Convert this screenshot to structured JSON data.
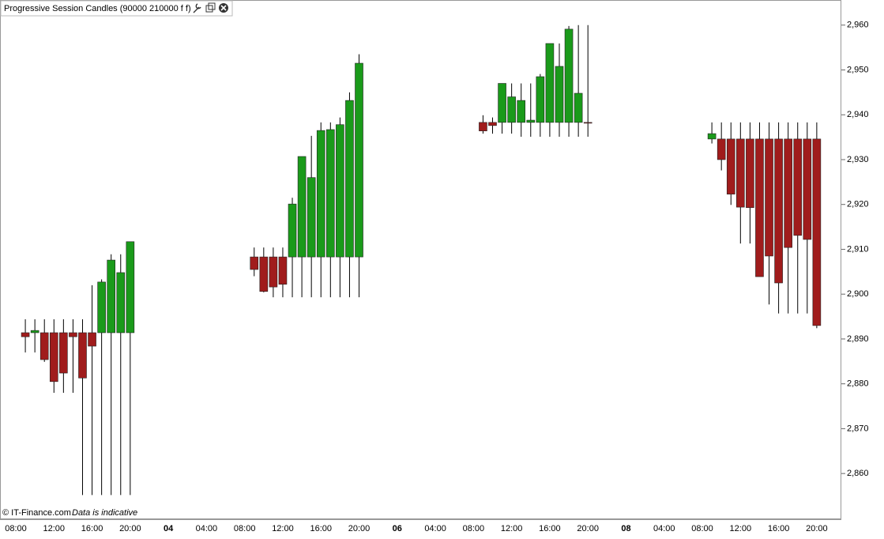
{
  "chart_data": {
    "type": "candlestick",
    "title": "Progressive Session Candles (90000 210000 f f)",
    "source": "© IT-Finance.com",
    "note": "Data is indicative",
    "up_color": "#1a9a1a",
    "down_color": "#a01c1c",
    "categories": [
      "08:00",
      null,
      null,
      null,
      "12:00",
      null,
      null,
      null,
      "16:00",
      null,
      null,
      null,
      "20:00",
      null,
      null,
      null,
      "04",
      null,
      null,
      null,
      "04:00",
      null,
      null,
      null,
      "08:00",
      null,
      null,
      null,
      "12:00",
      null,
      null,
      null,
      "16:00",
      null,
      null,
      null,
      "20:00",
      null,
      null,
      null,
      "06",
      null,
      null,
      null,
      "04:00",
      null,
      null,
      null,
      "08:00",
      null,
      null,
      null,
      "12:00",
      null,
      null,
      null,
      "16:00",
      null,
      null,
      null,
      "20:00",
      null,
      null,
      null,
      "08",
      null,
      null,
      null,
      "04:00",
      null,
      null,
      null,
      "08:00",
      null,
      null,
      null,
      "12:00",
      null,
      null,
      null,
      "16:00",
      null,
      null,
      null,
      "20:00"
    ],
    "open": [
      null,
      2891.4,
      2891.4,
      2891.4,
      2891.4,
      2891.4,
      2891.4,
      2891.4,
      2891.4,
      2891.4,
      2891.4,
      2891.4,
      2891.4,
      null,
      null,
      null,
      null,
      null,
      null,
      null,
      null,
      null,
      null,
      null,
      null,
      2908.3,
      2908.3,
      2908.3,
      2908.3,
      2908.3,
      2908.3,
      2908.3,
      2908.3,
      2908.3,
      2908.3,
      2908.3,
      2908.3,
      null,
      null,
      null,
      null,
      null,
      null,
      null,
      null,
      null,
      null,
      null,
      null,
      2938.3,
      2938.3,
      2938.3,
      2938.3,
      2938.3,
      2938.3,
      2938.3,
      2938.3,
      2938.3,
      2938.3,
      2938.3,
      2938.3,
      null,
      null,
      null,
      null,
      null,
      null,
      null,
      null,
      null,
      null,
      null,
      null,
      2934.6,
      2934.6,
      2934.6,
      2934.6,
      2934.6,
      2934.6,
      2934.6,
      2934.6,
      2934.6,
      2934.6,
      2934.6,
      2934.6
    ],
    "high": [
      null,
      2894.4,
      2894.4,
      2894.4,
      2894.4,
      2894.4,
      2894.4,
      2894.4,
      2902.0,
      2903.3,
      2908.9,
      2908.9,
      2911.7,
      null,
      null,
      null,
      null,
      null,
      null,
      null,
      null,
      null,
      null,
      null,
      null,
      2910.4,
      2910.4,
      2910.4,
      2910.4,
      2921.5,
      2930.7,
      2935.3,
      2938.3,
      2938.3,
      2939.4,
      2945.0,
      2953.5,
      null,
      null,
      null,
      null,
      null,
      null,
      null,
      null,
      null,
      null,
      null,
      null,
      2939.9,
      2939.4,
      2947.0,
      2947.0,
      2947.0,
      2947.0,
      2949.1,
      2955.9,
      2955.9,
      2959.8,
      2960.0,
      2960.0,
      null,
      null,
      null,
      null,
      null,
      null,
      null,
      null,
      null,
      null,
      null,
      null,
      2938.3,
      2938.3,
      2938.3,
      2938.3,
      2938.3,
      2938.3,
      2938.3,
      2938.3,
      2938.3,
      2938.3,
      2938.3,
      2938.3
    ],
    "low": [
      null,
      2887.0,
      2887.0,
      2884.9,
      2878.0,
      2878.0,
      2878.0,
      2855.2,
      2855.2,
      2855.2,
      2855.2,
      2855.2,
      2855.2,
      null,
      null,
      null,
      null,
      null,
      null,
      null,
      null,
      null,
      null,
      null,
      null,
      2904.0,
      2900.4,
      2899.3,
      2899.3,
      2899.3,
      2899.3,
      2899.3,
      2899.3,
      2899.3,
      2899.3,
      2899.3,
      2899.3,
      null,
      null,
      null,
      null,
      null,
      null,
      null,
      null,
      null,
      null,
      null,
      null,
      2935.8,
      2935.8,
      2935.8,
      2935.8,
      2935.1,
      2935.1,
      2935.1,
      2935.1,
      2935.1,
      2935.1,
      2935.1,
      2935.1,
      null,
      null,
      null,
      null,
      null,
      null,
      null,
      null,
      null,
      null,
      null,
      null,
      2933.6,
      2927.6,
      2919.9,
      2911.3,
      2911.3,
      2903.9,
      2897.7,
      2895.7,
      2895.7,
      2895.7,
      2895.7,
      2892.4
    ],
    "close": [
      null,
      2890.5,
      2891.9,
      2885.4,
      2880.5,
      2882.4,
      2890.5,
      2881.3,
      2888.4,
      2902.7,
      2907.6,
      2904.8,
      2911.7,
      null,
      null,
      null,
      null,
      null,
      null,
      null,
      null,
      null,
      null,
      null,
      null,
      2905.5,
      2900.6,
      2901.6,
      2902.2,
      2920.1,
      2930.7,
      2926.0,
      2936.5,
      2936.7,
      2937.8,
      2943.2,
      2951.5,
      null,
      null,
      null,
      null,
      null,
      null,
      null,
      null,
      null,
      null,
      null,
      null,
      2936.4,
      2937.6,
      2947.0,
      2944.0,
      2943.2,
      2938.8,
      2948.5,
      2955.9,
      2950.8,
      2959.1,
      2944.8,
      2938.2,
      null,
      null,
      null,
      null,
      null,
      null,
      null,
      null,
      null,
      null,
      null,
      null,
      2935.8,
      2930.0,
      2922.3,
      2919.4,
      2919.3,
      2903.9,
      2908.5,
      2902.5,
      2910.4,
      2913.1,
      2912.2,
      2893.0
    ],
    "ylim": [
      2849.8,
      2965.6
    ],
    "yticks": [
      {
        "value": 2860,
        "label": "2,860"
      },
      {
        "value": 2870,
        "label": "2,870"
      },
      {
        "value": 2880,
        "label": "2,880"
      },
      {
        "value": 2890,
        "label": "2,890"
      },
      {
        "value": 2900,
        "label": "2,900"
      },
      {
        "value": 2910,
        "label": "2,910"
      },
      {
        "value": 2920,
        "label": "2,920"
      },
      {
        "value": 2930,
        "label": "2,930"
      },
      {
        "value": 2940,
        "label": "2,940"
      },
      {
        "value": 2950,
        "label": "2,950"
      },
      {
        "value": 2960,
        "label": "2,960"
      }
    ],
    "grid": false
  }
}
